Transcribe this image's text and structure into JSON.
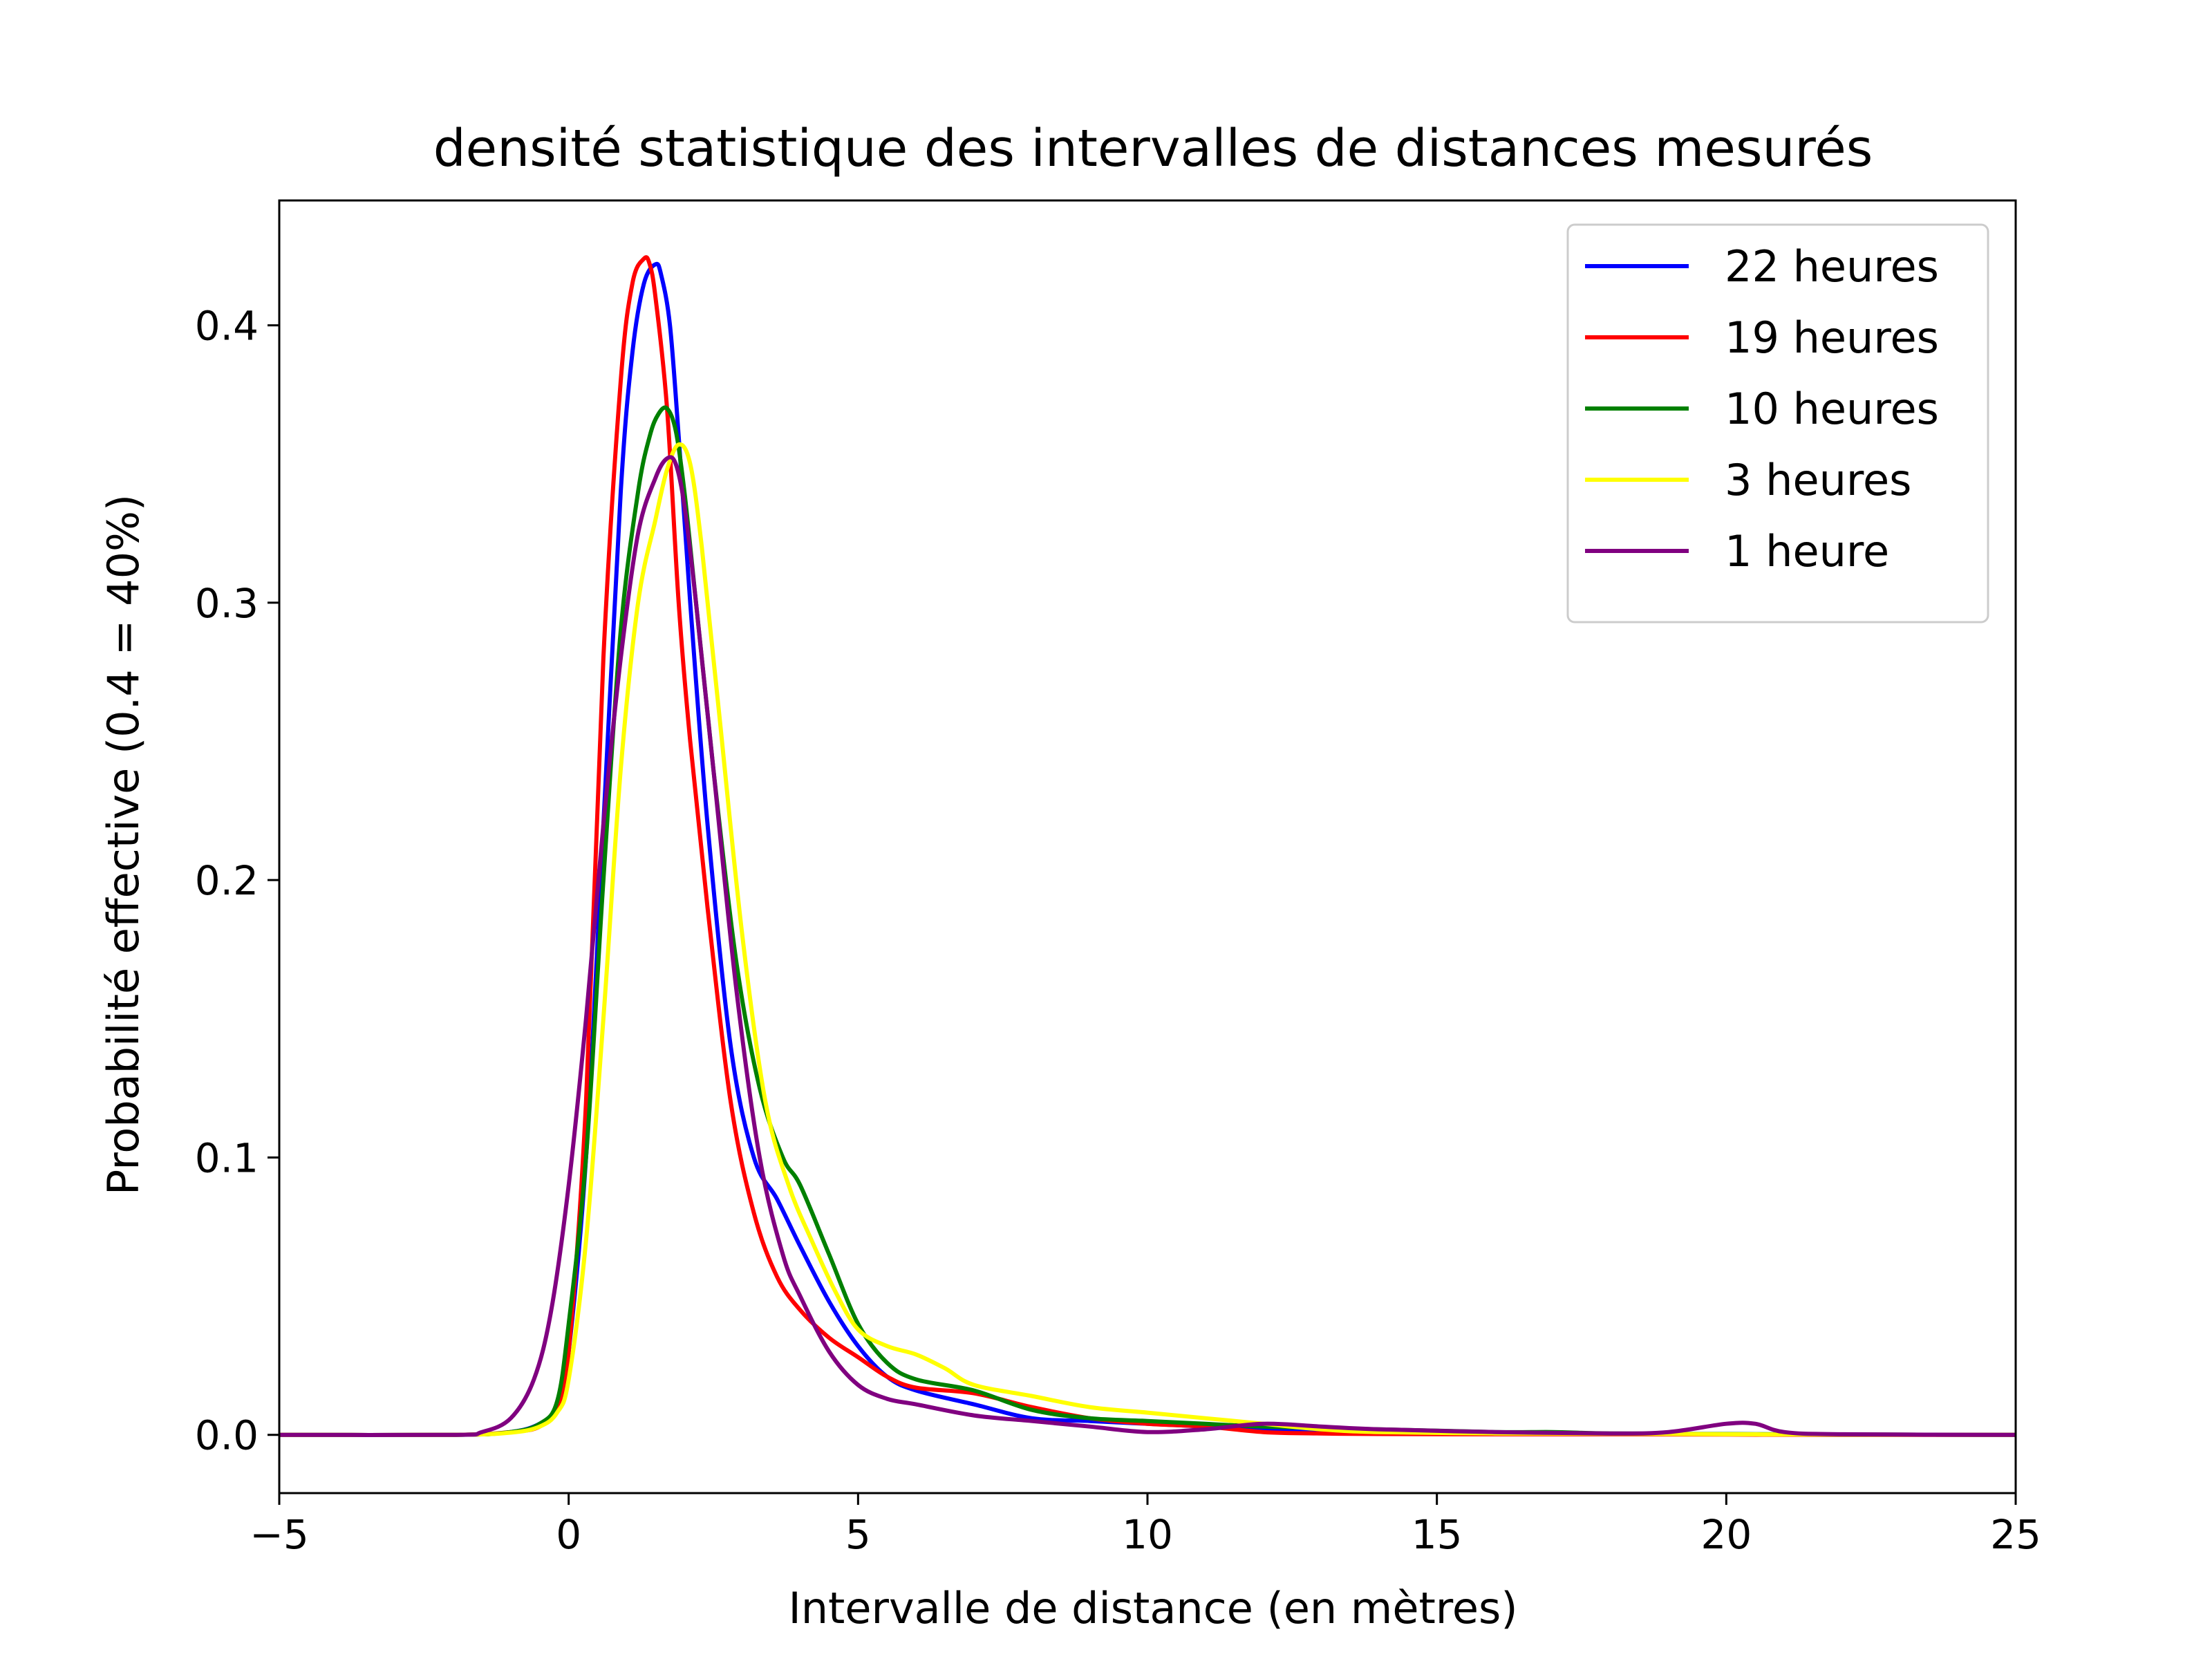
{
  "chart_data": {
    "type": "line",
    "title": "densité statistique des intervalles de distances mesurés",
    "xlabel": "Intervalle de distance (en mètres)",
    "ylabel": "Probabilité effective (0.4 = 40%)",
    "xlim": [
      -5,
      25
    ],
    "ylim": [
      -0.021,
      0.445
    ],
    "xticks": [
      -5,
      0,
      5,
      10,
      15,
      20,
      25
    ],
    "xtick_labels": [
      "−5",
      "0",
      "5",
      "10",
      "15",
      "20",
      "25"
    ],
    "yticks": [
      0.0,
      0.1,
      0.2,
      0.3,
      0.4
    ],
    "ytick_labels": [
      "0.0",
      "0.1",
      "0.2",
      "0.3",
      "0.4"
    ],
    "grid": false,
    "legend_position": "top-right",
    "series": [
      {
        "name": "22 heures",
        "color": "#0000ff",
        "x": [
          -5,
          -2,
          -1,
          -0.5,
          -0.2,
          0,
          0.3,
          0.6,
          0.9,
          1.1,
          1.3,
          1.5,
          1.6,
          1.75,
          1.9,
          2.1,
          2.4,
          2.8,
          3.2,
          3.6,
          4,
          4.5,
          5,
          5.5,
          6,
          7,
          8,
          9,
          10,
          11,
          12,
          14,
          16,
          18,
          20,
          22,
          25
        ],
        "y": [
          0,
          0,
          0.001,
          0.004,
          0.01,
          0.03,
          0.1,
          0.22,
          0.34,
          0.39,
          0.415,
          0.422,
          0.418,
          0.4,
          0.36,
          0.3,
          0.22,
          0.14,
          0.1,
          0.085,
          0.068,
          0.048,
          0.032,
          0.021,
          0.016,
          0.011,
          0.006,
          0.005,
          0.004,
          0.003,
          0.002,
          0.001,
          0.0005,
          0.0003,
          0.0002,
          0.0001,
          0
        ]
      },
      {
        "name": "19 heures",
        "color": "#ff0000",
        "x": [
          -5,
          -2,
          -1,
          -0.5,
          -0.2,
          0,
          0.3,
          0.6,
          0.9,
          1.1,
          1.3,
          1.4,
          1.5,
          1.7,
          1.9,
          2.1,
          2.4,
          2.8,
          3.2,
          3.6,
          4,
          4.5,
          5,
          5.5,
          6,
          7,
          8,
          9,
          10,
          11,
          12,
          13,
          14,
          16,
          18,
          20,
          22,
          25
        ],
        "y": [
          0,
          0,
          0.001,
          0.003,
          0.01,
          0.03,
          0.12,
          0.28,
          0.38,
          0.415,
          0.424,
          0.422,
          0.41,
          0.37,
          0.3,
          0.25,
          0.19,
          0.12,
          0.08,
          0.057,
          0.045,
          0.035,
          0.028,
          0.021,
          0.017,
          0.015,
          0.01,
          0.006,
          0.004,
          0.003,
          0.001,
          0.0005,
          0.0003,
          0.0002,
          0.0002,
          0.0001,
          0,
          0
        ]
      },
      {
        "name": "10 heures",
        "color": "#008000",
        "x": [
          -5,
          -2,
          -1,
          -0.5,
          -0.2,
          0,
          0.3,
          0.6,
          0.9,
          1.2,
          1.4,
          1.55,
          1.7,
          1.85,
          2,
          2.2,
          2.5,
          2.9,
          3.3,
          3.7,
          4,
          4.5,
          5,
          5.5,
          6,
          7,
          8,
          9,
          10,
          11,
          12,
          14,
          16,
          17,
          18,
          20,
          22,
          25
        ],
        "y": [
          0,
          0,
          0.001,
          0.004,
          0.012,
          0.04,
          0.1,
          0.2,
          0.29,
          0.34,
          0.36,
          0.368,
          0.37,
          0.362,
          0.34,
          0.3,
          0.24,
          0.17,
          0.125,
          0.1,
          0.09,
          0.065,
          0.04,
          0.026,
          0.02,
          0.016,
          0.009,
          0.006,
          0.005,
          0.004,
          0.003,
          0.002,
          0.001,
          0.001,
          0.0005,
          0.0003,
          0.0001,
          0
        ]
      },
      {
        "name": "3 heures",
        "color": "#ffff00",
        "x": [
          -5,
          -2,
          -1,
          -0.5,
          -0.2,
          0,
          0.3,
          0.6,
          0.9,
          1.2,
          1.5,
          1.7,
          1.9,
          2.1,
          2.3,
          2.6,
          3,
          3.4,
          3.8,
          4.2,
          4.6,
          5,
          5.5,
          6,
          6.5,
          7,
          8,
          9,
          10,
          11,
          12,
          13,
          14,
          16,
          18,
          20,
          22,
          25
        ],
        "y": [
          0,
          0,
          0.0008,
          0.003,
          0.008,
          0.02,
          0.07,
          0.15,
          0.24,
          0.3,
          0.33,
          0.348,
          0.357,
          0.35,
          0.32,
          0.26,
          0.18,
          0.12,
          0.09,
          0.07,
          0.052,
          0.038,
          0.032,
          0.029,
          0.024,
          0.018,
          0.014,
          0.01,
          0.008,
          0.006,
          0.004,
          0.002,
          0.001,
          0.0005,
          0.0004,
          0.0002,
          0.0001,
          0
        ]
      },
      {
        "name": "1 heure",
        "color": "#800080",
        "x": [
          -5,
          -2,
          -1.5,
          -1,
          -0.6,
          -0.3,
          0,
          0.3,
          0.6,
          0.9,
          1.2,
          1.5,
          1.7,
          1.85,
          2,
          2.2,
          2.5,
          2.9,
          3.3,
          3.7,
          4,
          4.5,
          5,
          5.5,
          6,
          7,
          8,
          9,
          10,
          11,
          12,
          13,
          14,
          16,
          18,
          19,
          20,
          20.5,
          21,
          22,
          25
        ],
        "y": [
          0,
          0,
          0.001,
          0.006,
          0.02,
          0.045,
          0.09,
          0.15,
          0.22,
          0.28,
          0.325,
          0.345,
          0.352,
          0.35,
          0.335,
          0.3,
          0.24,
          0.16,
          0.1,
          0.065,
          0.05,
          0.03,
          0.018,
          0.013,
          0.011,
          0.007,
          0.005,
          0.003,
          0.001,
          0.002,
          0.004,
          0.003,
          0.002,
          0.001,
          0.0005,
          0.001,
          0.004,
          0.004,
          0.001,
          0.0002,
          0
        ]
      }
    ]
  }
}
